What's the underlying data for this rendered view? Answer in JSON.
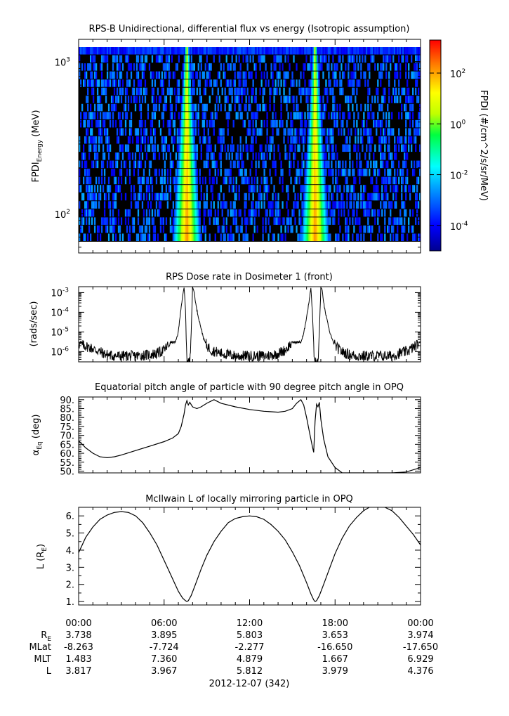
{
  "chart_data": [
    {
      "type": "heatmap",
      "title": "RPS-B  Unidirectional, differential flux vs energy (Isotropic assumption)",
      "ylabel_main": "FPDI",
      "ylabel_sub": "Energy",
      "ylabel_unit": " (MeV)",
      "yscale": "log",
      "ylim": [
        55,
        1400
      ],
      "yticks": [
        {
          "value": 100,
          "base": "10",
          "exp": "2"
        },
        {
          "value": 1000,
          "base": "10",
          "exp": "3"
        }
      ],
      "x_hours": [
        0,
        24
      ],
      "colorbar": {
        "label": "FPDI (#/cm^2/s/sr/MeV)",
        "scale": "log",
        "range_exp": [
          -5,
          3.3
        ],
        "ticks": [
          {
            "value_exp": 2,
            "base": "10",
            "exp": "2"
          },
          {
            "value_exp": 0,
            "base": "10",
            "exp": "0"
          },
          {
            "value_exp": -2,
            "base": "10",
            "exp": "-2"
          },
          {
            "value_exp": -4,
            "base": "10",
            "exp": "-4"
          }
        ]
      },
      "belt_crossings_hours": [
        7.6,
        16.6
      ],
      "peak_flux_exp": 2.3,
      "background_flux_exp": -3.5
    },
    {
      "type": "line",
      "title": "RPS  Dose rate in Dosimeter 1 (front)",
      "ylabel": "(rads/sec)",
      "yscale": "log",
      "ylim": [
        3e-07,
        0.002
      ],
      "yticks": [
        {
          "value": 1e-06,
          "base": "10",
          "exp": "-6"
        },
        {
          "value": 1e-05,
          "base": "10",
          "exp": "-5"
        },
        {
          "value": 0.0001,
          "base": "10",
          "exp": "-4"
        },
        {
          "value": 0.001,
          "base": "10",
          "exp": "-3"
        }
      ],
      "series": [
        {
          "x": [
            0,
            0.4,
            0.8,
            1.2,
            1.6,
            2.0,
            2.5,
            3.0,
            3.5,
            4.0,
            4.5,
            5.0,
            5.5,
            6.0,
            6.2,
            6.5,
            6.8,
            7.0,
            7.1,
            7.2,
            7.3,
            7.4,
            7.5,
            7.55,
            7.62,
            7.7,
            7.8,
            7.9,
            8.0,
            8.1,
            8.25,
            8.4,
            8.6,
            8.8,
            9.0,
            9.3,
            9.6,
            10.0,
            10.5,
            11.0,
            11.5,
            12.0,
            12.5,
            13.0,
            13.5,
            14.0,
            14.5,
            15.0,
            15.3,
            15.6,
            15.8,
            16.0,
            16.1,
            16.2,
            16.3,
            16.4,
            16.5,
            16.55,
            16.62,
            16.7,
            16.8,
            16.9,
            17.0,
            17.1,
            17.25,
            17.4,
            17.6,
            17.8,
            18.0,
            18.3,
            18.6,
            19.0,
            19.5,
            20.0,
            20.5,
            21.0,
            21.5,
            22.0,
            22.5,
            23.0,
            23.5,
            24.0
          ],
          "y": [
            2.5e-06,
            2e-06,
            1.6e-06,
            1.2e-06,
            9e-07,
            7e-07,
            6e-07,
            6e-07,
            6e-07,
            6e-07,
            6.5e-07,
            7e-07,
            8e-07,
            1.2e-06,
            1.8e-06,
            3e-06,
            3e-06,
            1e-05,
            5e-05,
            0.0002,
            0.0006,
            0.0018,
            0.00015,
            5e-06,
            3e-07,
            3e-07,
            3e-07,
            1e-05,
            0.0018,
            0.0012,
            0.0002,
            6e-05,
            1.5e-05,
            4e-06,
            2e-06,
            1.2e-06,
            1e-06,
            8e-07,
            7e-07,
            6e-07,
            6e-07,
            6e-07,
            6e-07,
            6e-07,
            6.5e-07,
            8e-07,
            1.2e-06,
            3e-06,
            3e-06,
            3e-06,
            8e-06,
            6e-05,
            0.00015,
            0.0005,
            0.0018,
            0.00012,
            3e-06,
            3e-07,
            3e-07,
            3e-07,
            3e-07,
            1e-05,
            0.0018,
            0.0012,
            0.00018,
            5e-05,
            1.2e-05,
            4e-06,
            2e-06,
            1.2e-06,
            9e-07,
            7e-07,
            6e-07,
            6e-07,
            6e-07,
            6e-07,
            6e-07,
            6e-07,
            8e-07,
            1e-06,
            1.6e-06,
            3e-06
          ]
        }
      ]
    },
    {
      "type": "line",
      "title": "Equatorial pitch angle of particle with 90 degree pitch angle in OPQ",
      "ylabel_main": "α",
      "ylabel_sub": "Eq",
      "ylabel_unit": " (deg)",
      "ylim": [
        49,
        91.5
      ],
      "yticks": [
        50,
        55,
        60,
        65,
        70,
        75,
        80,
        85,
        90
      ],
      "ytick_labels": [
        "50.",
        "55.",
        "60.",
        "65.",
        "70.",
        "75.",
        "80.",
        "85.",
        "90."
      ],
      "series": [
        {
          "x": [
            0,
            0.5,
            1.0,
            1.5,
            2.0,
            2.5,
            3.0,
            4.0,
            5.0,
            6.0,
            6.6,
            7.0,
            7.2,
            7.4,
            7.5,
            7.6,
            7.7,
            7.8,
            8.0,
            8.3,
            8.6,
            9.0,
            9.5,
            10.0,
            11.0,
            12.0,
            13.0,
            14.0,
            14.5,
            15.0,
            15.3,
            15.6,
            15.8,
            16.0,
            16.2,
            16.4,
            16.5,
            16.6,
            16.7,
            16.8,
            16.9,
            17.0,
            17.2,
            17.5,
            18.0,
            18.5,
            19.0,
            20.0,
            21.0,
            22.0,
            23.0,
            24.0
          ],
          "y": [
            67,
            63,
            60,
            58,
            57.5,
            58,
            59,
            61.5,
            64,
            66.5,
            68.5,
            71,
            75,
            82,
            87,
            89.5,
            87,
            88.5,
            86,
            85,
            86,
            88,
            90,
            88,
            86,
            84.5,
            83.5,
            83,
            83.5,
            85,
            88,
            90,
            87,
            80,
            72,
            64,
            60.5,
            78,
            87.5,
            86,
            88.5,
            79,
            68,
            58,
            52,
            49,
            49,
            49,
            49,
            49,
            49.5,
            52
          ]
        }
      ]
    },
    {
      "type": "line",
      "title": "McIlwain L of locally mirroring particle in OPQ",
      "ylabel_main": "L (R",
      "ylabel_sub": "E",
      "ylabel_unit": ")",
      "ylim": [
        0.8,
        6.5
      ],
      "yticks": [
        1,
        2,
        3,
        4,
        5,
        6
      ],
      "ytick_labels": [
        "1.",
        "2.",
        "3.",
        "4.",
        "5.",
        "6."
      ],
      "series": [
        {
          "x": [
            0,
            0.5,
            1.0,
            1.5,
            2.0,
            2.5,
            3.0,
            3.5,
            4.0,
            4.5,
            5.0,
            5.5,
            6.0,
            6.5,
            7.0,
            7.3,
            7.5,
            7.6,
            7.7,
            7.9,
            8.2,
            8.6,
            9.0,
            9.5,
            10.0,
            10.5,
            11.0,
            11.5,
            12.0,
            12.5,
            13.0,
            13.5,
            14.0,
            14.5,
            15.0,
            15.5,
            16.0,
            16.3,
            16.5,
            16.6,
            16.7,
            16.9,
            17.2,
            17.6,
            18.0,
            18.5,
            19.0,
            19.5,
            20.0,
            20.5,
            21.0,
            21.5,
            22.0,
            22.5,
            23.0,
            23.5,
            24.0
          ],
          "y": [
            3.85,
            4.75,
            5.35,
            5.8,
            6.05,
            6.2,
            6.25,
            6.2,
            6.0,
            5.6,
            5.0,
            4.3,
            3.4,
            2.5,
            1.6,
            1.2,
            1.05,
            1.0,
            1.05,
            1.35,
            2.0,
            2.9,
            3.7,
            4.5,
            5.1,
            5.6,
            5.85,
            5.95,
            6.0,
            5.95,
            5.8,
            5.5,
            5.1,
            4.6,
            3.9,
            3.1,
            2.1,
            1.45,
            1.1,
            1.0,
            1.05,
            1.35,
            2.0,
            2.9,
            3.8,
            4.7,
            5.4,
            5.9,
            6.3,
            6.55,
            6.6,
            6.5,
            6.3,
            5.9,
            5.4,
            4.9,
            4.3
          ]
        }
      ]
    }
  ],
  "time_axis": {
    "labels": [
      "00:00",
      "06:00",
      "12:00",
      "18:00",
      "00:00"
    ],
    "hours": [
      0,
      6,
      12,
      18,
      24
    ],
    "date_label": "2012-12-07 (342)"
  },
  "ephemeris": {
    "rows": [
      {
        "label_main": "R",
        "label_sub": "E",
        "values": [
          "3.738",
          "3.895",
          "5.803",
          "3.653",
          "3.974"
        ]
      },
      {
        "label_main": "MLat",
        "label_sub": "",
        "values": [
          "-8.263",
          "-7.724",
          "-2.277",
          "-16.650",
          "-17.650"
        ]
      },
      {
        "label_main": "MLT",
        "label_sub": "",
        "values": [
          "1.483",
          "7.360",
          "4.879",
          "1.667",
          "6.929"
        ]
      },
      {
        "label_main": "L",
        "label_sub": "",
        "values": [
          "3.817",
          "3.967",
          "5.812",
          "3.979",
          "4.376"
        ]
      }
    ]
  }
}
